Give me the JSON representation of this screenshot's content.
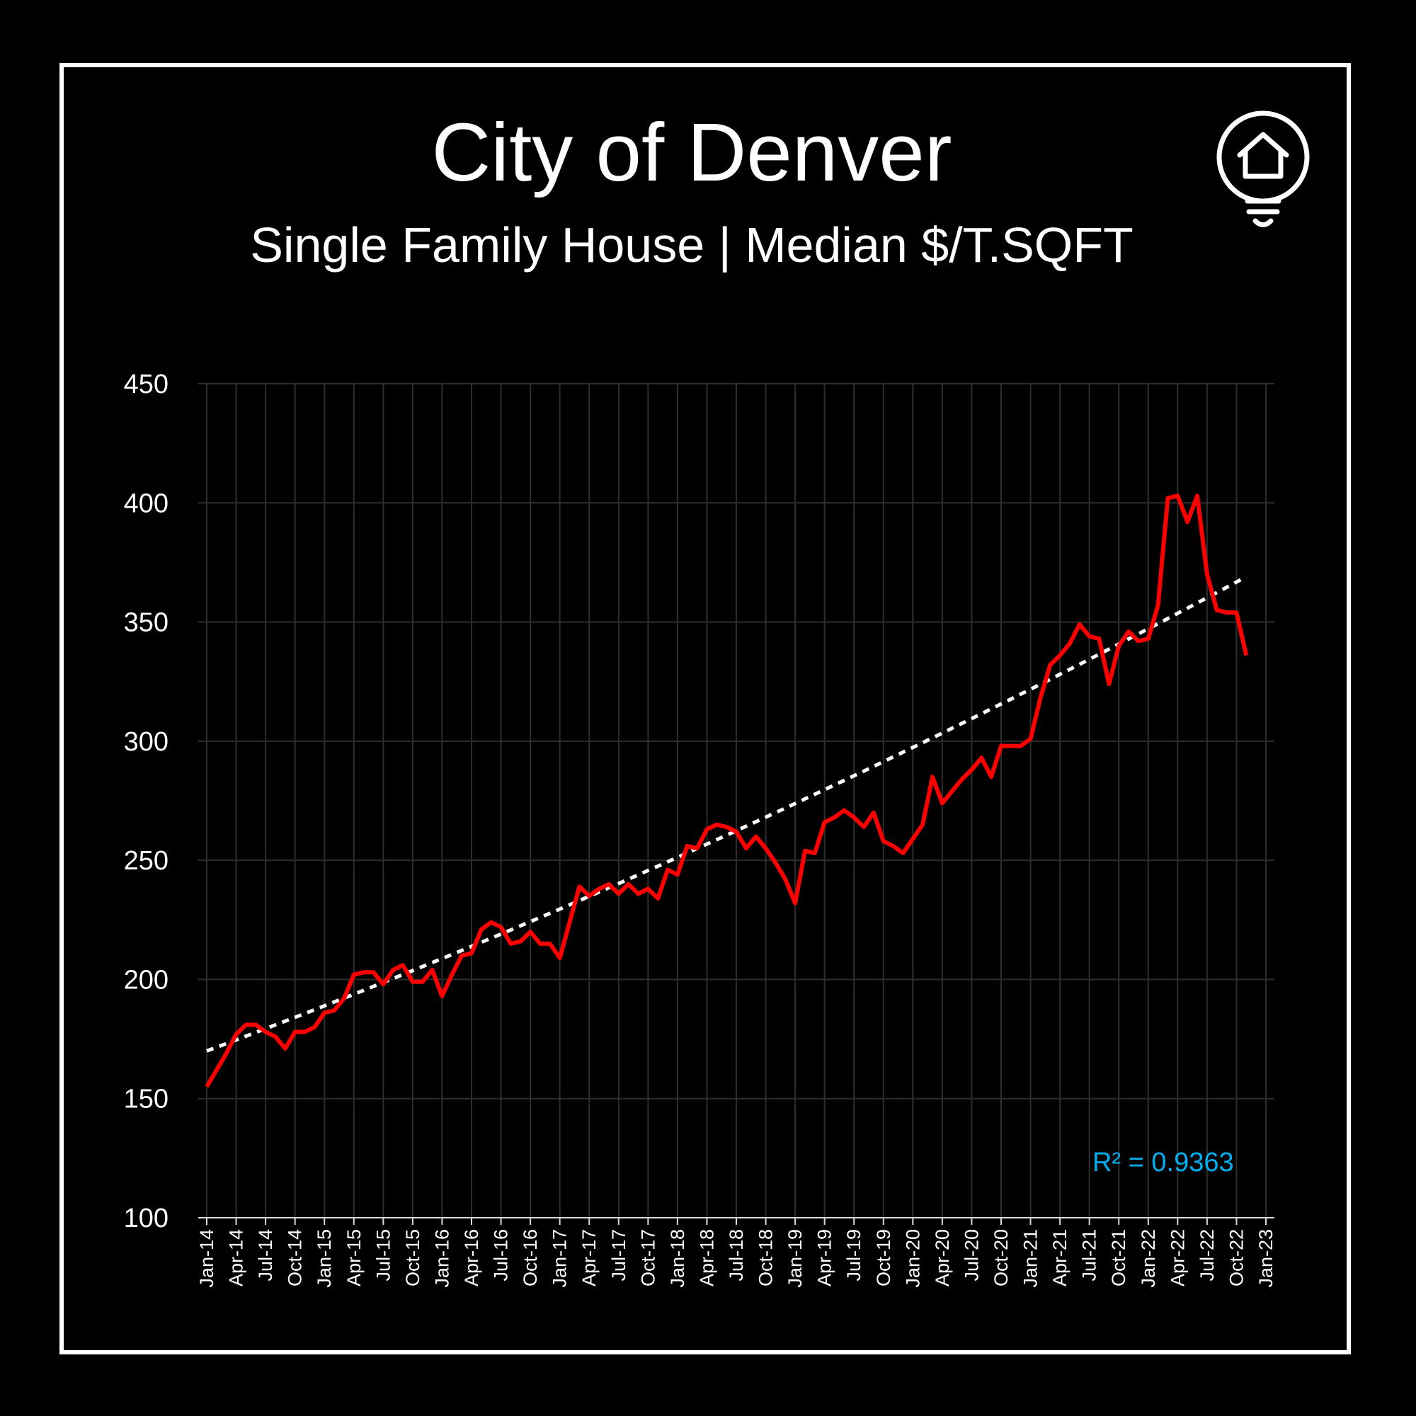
{
  "chart_data": {
    "type": "line",
    "title": "City of Denver",
    "subtitle": "Single Family House | Median $/T.SQFT",
    "ylim": [
      100,
      450
    ],
    "y_ticks": [
      100,
      150,
      200,
      250,
      300,
      350,
      400,
      450
    ],
    "x_ticks": [
      "Jan-14",
      "Apr-14",
      "Jul-14",
      "Oct-14",
      "Jan-15",
      "Apr-15",
      "Jul-15",
      "Oct-15",
      "Jan-16",
      "Apr-16",
      "Jul-16",
      "Oct-16",
      "Jan-17",
      "Apr-17",
      "Jul-17",
      "Oct-17",
      "Jan-18",
      "Apr-18",
      "Jul-18",
      "Oct-18",
      "Jan-19",
      "Apr-19",
      "Jul-19",
      "Oct-19",
      "Jan-20",
      "Apr-20",
      "Jul-20",
      "Oct-20",
      "Jan-21",
      "Apr-21",
      "Jul-21",
      "Oct-21",
      "Jan-22",
      "Apr-22",
      "Jul-22",
      "Oct-22",
      "Jan-23"
    ],
    "grid": true,
    "series": [
      {
        "color": "#ff0000",
        "x_start": "Jan-14",
        "frequency": "monthly",
        "values": [
          155,
          162,
          169,
          177,
          181,
          181,
          178,
          176,
          171,
          178,
          178,
          180,
          186,
          187,
          192,
          202,
          203,
          203,
          198,
          204,
          206,
          199,
          199,
          204,
          193,
          202,
          210,
          211,
          221,
          224,
          222,
          215,
          216,
          220,
          215,
          215,
          209,
          224,
          239,
          235,
          238,
          240,
          236,
          240,
          236,
          238,
          234,
          246,
          244,
          256,
          255,
          263,
          265,
          264,
          262,
          255,
          260,
          255,
          249,
          242,
          232,
          254,
          253,
          266,
          268,
          271,
          268,
          264,
          270,
          258,
          256,
          253,
          259,
          265,
          285,
          274,
          279,
          284,
          288,
          293,
          285,
          298,
          298,
          298,
          301,
          318,
          332,
          336,
          341,
          349,
          344,
          343,
          324,
          340,
          346,
          342,
          343,
          357,
          402,
          403,
          392,
          403,
          370,
          355,
          354,
          354,
          336
        ]
      }
    ],
    "trendline": {
      "type": "polynomial",
      "color": "#ffffff",
      "start": 170,
      "end": 369,
      "r_squared_label": "R² = 0.9363",
      "label_color": "#00b0f0"
    }
  },
  "icon": "house-lightbulb-icon"
}
